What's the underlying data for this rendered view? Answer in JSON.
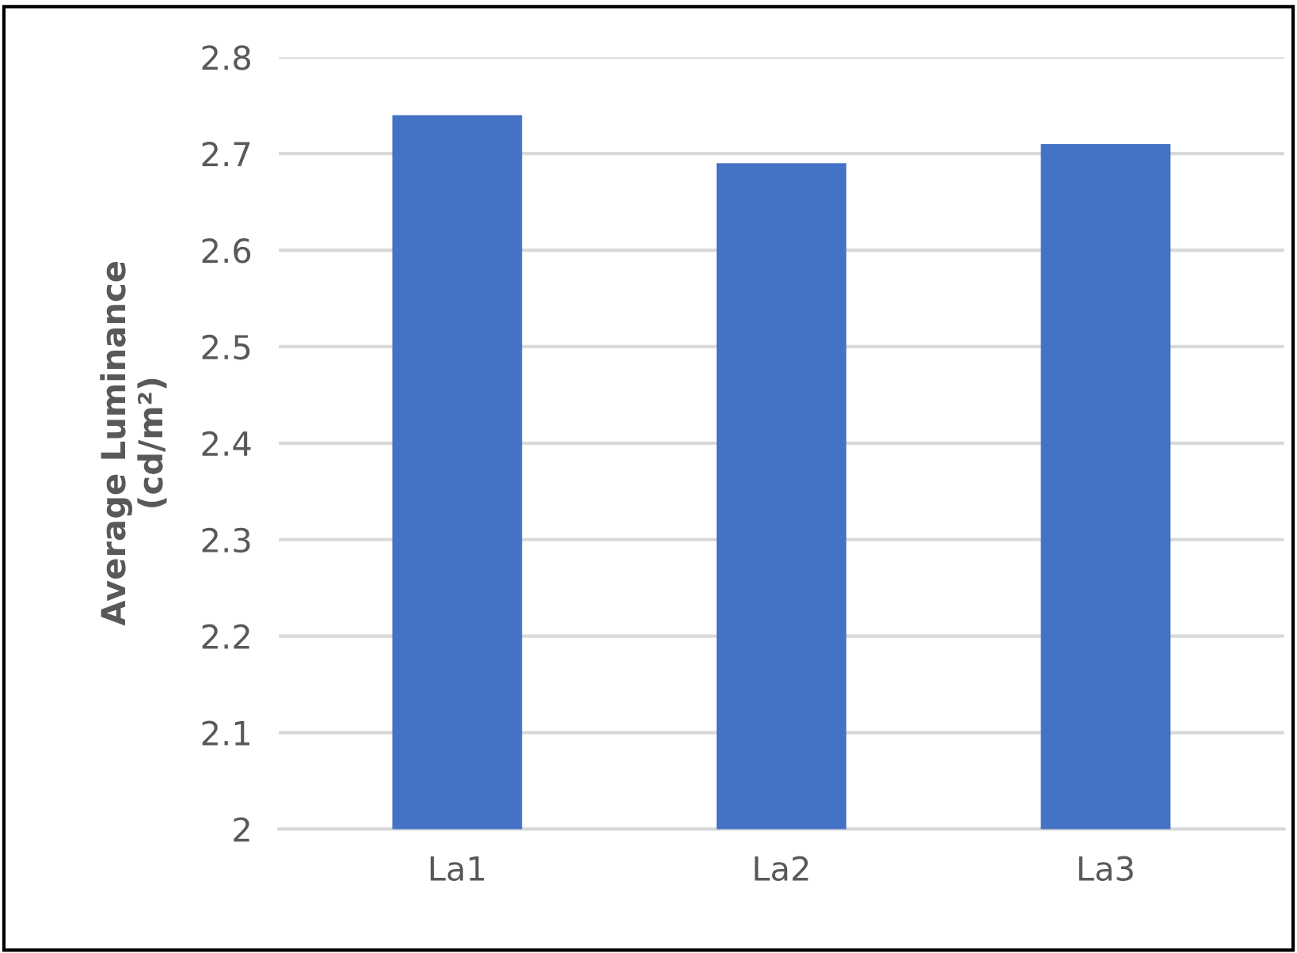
{
  "chart_data": {
    "type": "bar",
    "ylabel": "Average Luminance\n(cd/m²)",
    "categories": [
      "La1",
      "La2",
      "La3"
    ],
    "values": [
      2.74,
      2.69,
      2.71
    ],
    "color": "#4472c4",
    "ylim": [
      2,
      2.8
    ],
    "yticks": [
      {
        "value": 2,
        "label": "2"
      },
      2.1,
      2.2,
      2.3,
      2.4,
      2.5,
      2.6,
      2.7,
      2.8
    ],
    "grid": "y"
  }
}
